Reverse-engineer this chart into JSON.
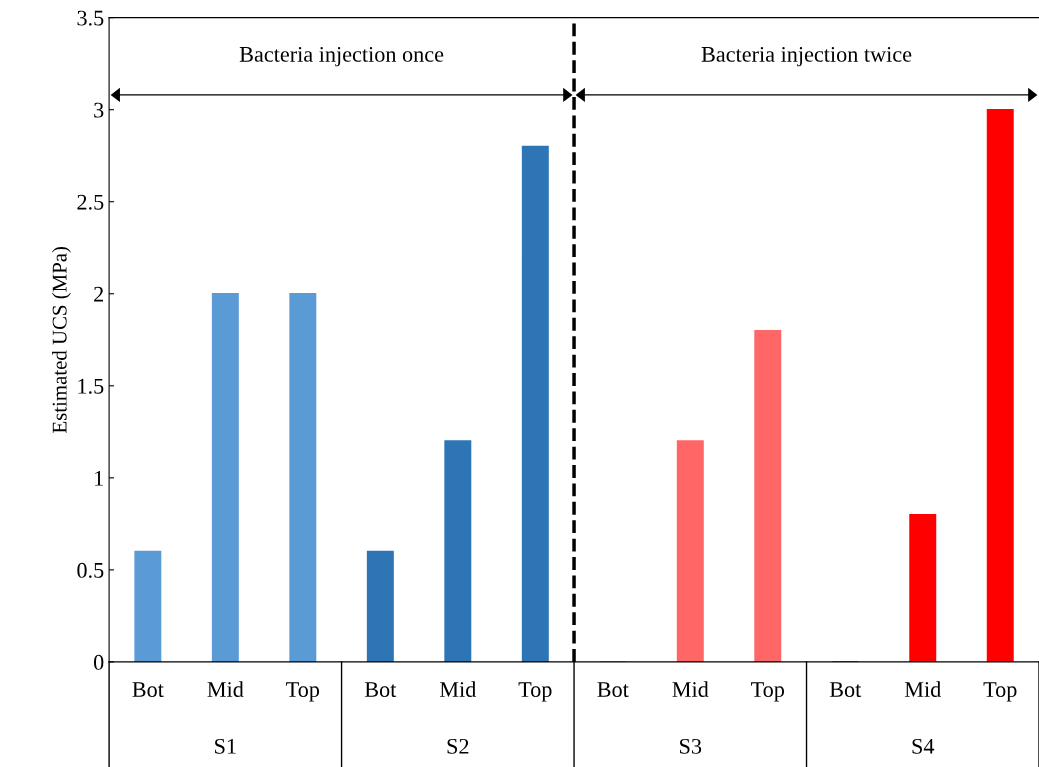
{
  "chart_data": {
    "type": "bar",
    "ylabel": "Estimated UCS (MPa)",
    "categories": [
      "Bot",
      "Mid",
      "Top",
      "Bot",
      "Mid",
      "Top",
      "Bot",
      "Mid",
      "Top",
      "Bot",
      "Mid",
      "Top"
    ],
    "values": [
      0.6,
      2,
      2,
      0.6,
      1.2,
      2.8,
      0,
      1.2,
      1.8,
      0,
      0.8,
      3.0
    ],
    "colors": [
      "#5b9bd5",
      "#5b9bd5",
      "#5b9bd5",
      "#2e75b6",
      "#2e75b6",
      "#2e75b6",
      "#ff6666",
      "#ff6666",
      "#ff6666",
      "#ff0000",
      "#ff0000",
      "#ff0000"
    ],
    "ylim": [
      0,
      3.5
    ],
    "yticks": [
      0,
      0.5,
      1,
      1.5,
      2,
      2.5,
      3,
      3.5
    ],
    "annotations": [
      "Bacteria injection once",
      "Bacteria injection twice",
      "S1",
      "S2",
      "S3",
      "S4"
    ],
    "grid": false,
    "legend": false
  }
}
